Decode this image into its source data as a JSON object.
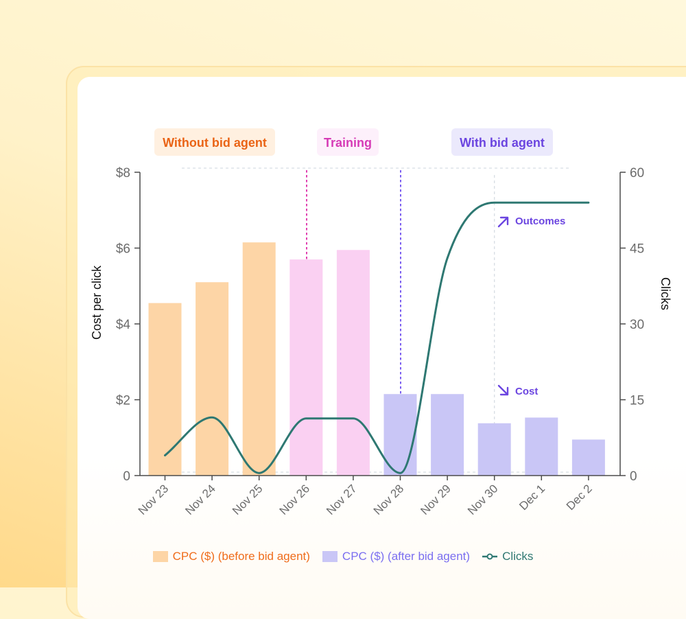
{
  "chart_data": {
    "type": "bar+line",
    "categories": [
      "Nov 23",
      "Nov 24",
      "Nov 25",
      "Nov 26",
      "Nov 27",
      "Nov 28",
      "Nov 29",
      "Nov 30",
      "Dec 1",
      "Dec 2"
    ],
    "series": [
      {
        "name": "CPC ($) (before bid agent)",
        "kind": "bar",
        "axis": "left",
        "color": "#fdd5a6",
        "text_color": "#ef6c1b",
        "values": [
          4.55,
          5.1,
          6.15,
          null,
          null,
          null,
          null,
          null,
          null,
          null
        ]
      },
      {
        "name": "Training",
        "kind": "bar",
        "axis": "left",
        "color": "#fad0f2",
        "values": [
          null,
          null,
          null,
          5.7,
          5.95,
          null,
          null,
          null,
          null,
          null
        ]
      },
      {
        "name": "CPC ($) (after bid agent)",
        "kind": "bar",
        "axis": "left",
        "color": "#c9c6f6",
        "text_color": "#7a6ef0",
        "values": [
          null,
          null,
          null,
          null,
          null,
          2.15,
          2.15,
          1.38,
          1.53,
          0.95
        ]
      },
      {
        "name": "Clicks",
        "kind": "line",
        "axis": "right",
        "color": "#2e7872",
        "values": [
          4,
          11.5,
          0.5,
          11.3,
          11.3,
          0.5,
          43,
          54,
          54,
          54
        ]
      }
    ],
    "left_axis": {
      "label": "Cost per click",
      "range": [
        0,
        8
      ],
      "ticks": [
        0,
        2,
        4,
        6,
        8
      ],
      "tick_labels": [
        "0",
        "$2",
        "$4",
        "$6",
        "$8"
      ]
    },
    "right_axis": {
      "label": "Clicks",
      "range": [
        0,
        60
      ],
      "ticks": [
        0,
        15,
        30,
        45,
        60
      ],
      "tick_labels": [
        "0",
        "15",
        "30",
        "45",
        "60"
      ]
    },
    "phases": [
      {
        "label": "Without bid agent",
        "text_color": "#ea6416",
        "bg": "#fff0e0"
      },
      {
        "label": "Training",
        "text_color": "#d63bb6",
        "bg": "#fdf0fb"
      },
      {
        "label": "With bid agent",
        "text_color": "#6b45e0",
        "bg": "#ebe9fc"
      }
    ],
    "annotations": [
      {
        "label": "Outcomes",
        "direction": "up-right",
        "color": "#6b45e0"
      },
      {
        "label": "Cost",
        "direction": "down-right",
        "color": "#6b45e0"
      }
    ],
    "legend_position": "bottom"
  }
}
